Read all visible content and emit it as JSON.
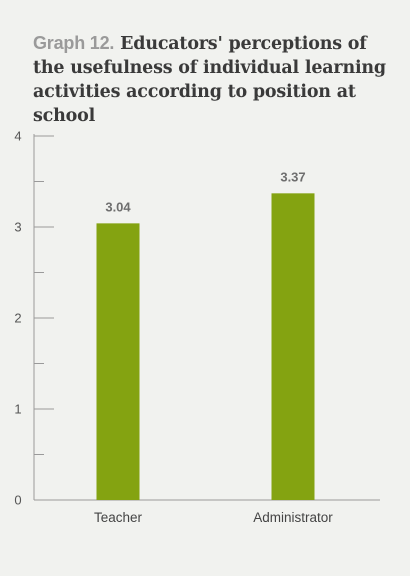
{
  "title": {
    "prefix": "Graph 12.",
    "text": "Educators' perceptions of the usefulness of individual learning activities according to position at school"
  },
  "colors": {
    "bar": "#84a311",
    "axis": "#9a9a9a",
    "text": "#444444"
  },
  "chart_data": {
    "type": "bar",
    "categories": [
      "Teacher",
      "Administrator"
    ],
    "values": [
      3.04,
      3.37
    ],
    "data_labels": [
      "3.04",
      "3.37"
    ],
    "ylim": [
      0,
      4
    ],
    "yticks": [
      "0",
      "1",
      "2",
      "3",
      "4"
    ],
    "minor_ticks": true,
    "xlabel": "",
    "ylabel": "",
    "grid": false,
    "legend": "none"
  }
}
